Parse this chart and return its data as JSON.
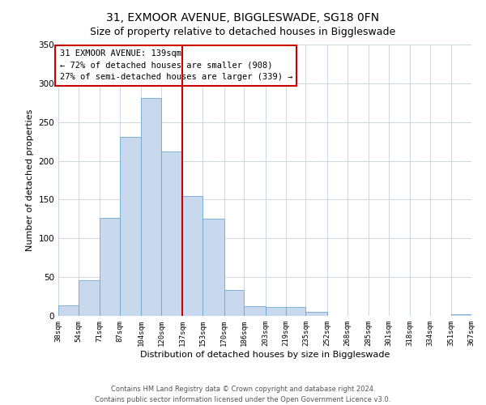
{
  "title": "31, EXMOOR AVENUE, BIGGLESWADE, SG18 0FN",
  "subtitle": "Size of property relative to detached houses in Biggleswade",
  "xlabel": "Distribution of detached houses by size in Biggleswade",
  "ylabel": "Number of detached properties",
  "bin_edges": [
    38,
    54,
    71,
    87,
    104,
    120,
    137,
    153,
    170,
    186,
    203,
    219,
    235,
    252,
    268,
    285,
    301,
    318,
    334,
    351,
    367
  ],
  "bar_heights": [
    14,
    46,
    126,
    231,
    281,
    212,
    155,
    125,
    33,
    13,
    12,
    11,
    5,
    0,
    0,
    0,
    0,
    0,
    0,
    2
  ],
  "bar_color": "#c9d9ed",
  "bar_edge_color": "#6ea6d0",
  "vline_x": 137,
  "vline_color": "#cc0000",
  "annotation_title": "31 EXMOOR AVENUE: 139sqm",
  "annotation_line1": "← 72% of detached houses are smaller (908)",
  "annotation_line2": "27% of semi-detached houses are larger (339) →",
  "annotation_box_color": "#ffffff",
  "annotation_border_color": "#cc0000",
  "ylim": [
    0,
    350
  ],
  "tick_labels": [
    "38sqm",
    "54sqm",
    "71sqm",
    "87sqm",
    "104sqm",
    "120sqm",
    "137sqm",
    "153sqm",
    "170sqm",
    "186sqm",
    "203sqm",
    "219sqm",
    "235sqm",
    "252sqm",
    "268sqm",
    "285sqm",
    "301sqm",
    "318sqm",
    "334sqm",
    "351sqm",
    "367sqm"
  ],
  "footer1": "Contains HM Land Registry data © Crown copyright and database right 2024.",
  "footer2": "Contains public sector information licensed under the Open Government Licence v3.0.",
  "bg_color": "#ffffff",
  "grid_color": "#cdd8e6",
  "title_fontsize": 10,
  "subtitle_fontsize": 9,
  "axis_label_fontsize": 8,
  "tick_fontsize": 6.5,
  "annotation_fontsize": 7.5,
  "footer_fontsize": 6
}
